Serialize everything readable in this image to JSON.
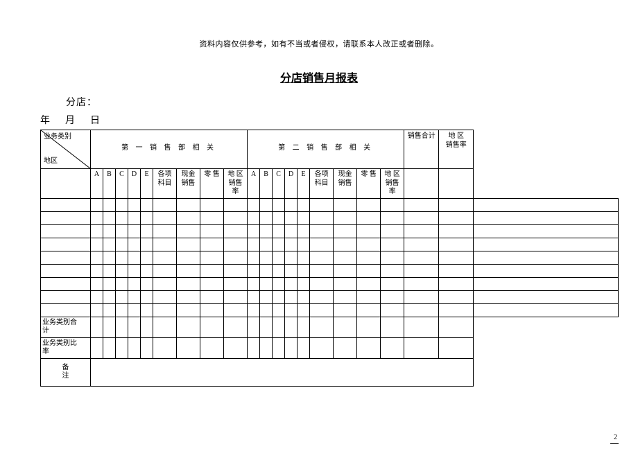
{
  "disclaimer": "资料内容仅供参考，如有不当或者侵权，请联系本人改正或者删除。",
  "title": "分店销售月报表",
  "store_label": "分店：",
  "date_label": "年　月　日",
  "diag": {
    "top": "业务类别",
    "bottom": "地区"
  },
  "group1": "第 一 销 售 部 相 关",
  "group2": "第 二 销 售 部 相 关",
  "col_sales_total": "销售合计",
  "col_region_rate": "地 区\n销售率",
  "sub": {
    "a": "A",
    "b": "B",
    "c": "C",
    "d": "D",
    "e": "E",
    "items": "各项\n科目",
    "cash": "现金\n销售",
    "retail": "零 售",
    "region_rate": "地 区\n销售率"
  },
  "row_sum_category": "业务类别合\n计",
  "row_ratio_category": "业务类别比\n率",
  "note_label": "备\n注",
  "page_number": "2",
  "style": {
    "background_color": "#ffffff",
    "text_color": "#000000",
    "border_color": "#000000",
    "title_fontsize": 16,
    "body_fontsize": 12,
    "cell_fontsize": 10,
    "data_row_count": 9,
    "col_count_total": 22
  }
}
